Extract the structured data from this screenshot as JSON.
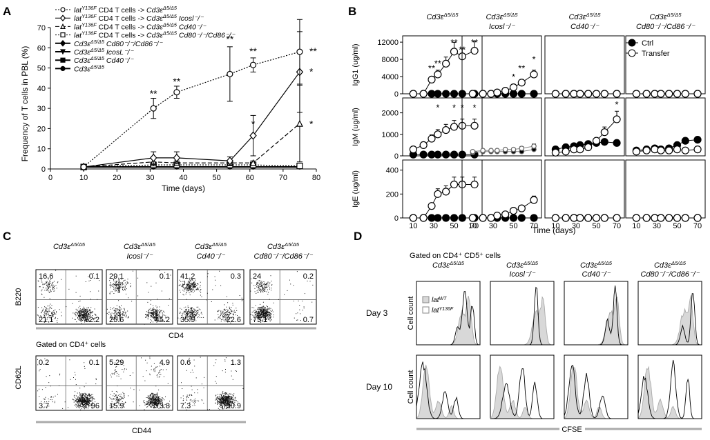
{
  "panels": {
    "a": "A",
    "b": "B",
    "c": "C",
    "d": "D"
  },
  "panelA": {
    "ylabel": "Frequency of T cells in PBL (%)",
    "xlabel": "Time (days)",
    "xticks": [
      "0",
      "10",
      "20",
      "30",
      "40",
      "50",
      "60",
      "70",
      "80"
    ],
    "yticks": [
      "0",
      "10",
      "20",
      "30",
      "40",
      "50",
      "60",
      "70"
    ],
    "legend": [
      {
        "pre": "lat",
        "sup": "Y136F",
        "mid": " CD4 T cells -> ",
        "main": "Cd3ε",
        "sup2": "Δ5/Δ5",
        "post": "",
        "marker": "circle-open",
        "dash": "2,2"
      },
      {
        "pre": "lat",
        "sup": "Y136F",
        "mid": " CD4 T cells -> ",
        "main": "Cd3ε",
        "sup2": "Δ5/Δ5",
        "post": " Icosl⁻/⁻",
        "marker": "diamond-open",
        "dash": ""
      },
      {
        "pre": "lat",
        "sup": "Y136F",
        "mid": " CD4 T cells -> ",
        "main": "Cd3ε",
        "sup2": "Δ5/Δ5",
        "post": " Cd40⁻/⁻",
        "marker": "triangle-open",
        "dash": "6,3"
      },
      {
        "pre": "lat",
        "sup": "Y136F",
        "mid": " CD4 T cells -> ",
        "main": "Cd3ε",
        "sup2": "Δ5/Δ5",
        "post": " Cd80⁻/⁻/Cd86⁻/⁻",
        "marker": "square-open",
        "dash": "2,2"
      },
      {
        "pre": "",
        "sup": "",
        "mid": "",
        "main": "Cd3ε",
        "sup2": "Δ5/Δ5",
        "post": " Cd80⁻/⁻/Cd86⁻/⁻",
        "marker": "diamond",
        "dash": ""
      },
      {
        "pre": "",
        "sup": "",
        "mid": "",
        "main": "Cd3ε",
        "sup2": "Δ5/Δ5",
        "post": " IcosL⁻/⁻",
        "marker": "triangle-down",
        "dash": ""
      },
      {
        "pre": "",
        "sup": "",
        "mid": "",
        "main": "Cd3ε",
        "sup2": "Δ5/Δ5",
        "post": " Cd40⁻/⁻",
        "marker": "square",
        "dash": ""
      },
      {
        "pre": "",
        "sup": "",
        "mid": "",
        "main": "Cd3ε",
        "sup2": "Δ5/Δ5",
        "post": "",
        "marker": "circle",
        "dash": ""
      }
    ],
    "stars": [
      {
        "x": 31,
        "y": 37,
        "t": "**"
      },
      {
        "x": 38,
        "y": 43,
        "t": "**"
      },
      {
        "x": 54,
        "y": 64,
        "t": "**"
      },
      {
        "x": 61,
        "y": 58,
        "t": "**"
      },
      {
        "x": 75,
        "y": 58,
        "t": "**"
      },
      {
        "x": 61,
        "y": 22,
        "t": "*"
      },
      {
        "x": 75,
        "y": 48,
        "t": "*"
      },
      {
        "x": 75,
        "y": 22,
        "t": "*"
      }
    ]
  },
  "panelB": {
    "titles": [
      "Cd3ε",
      "Cd3ε",
      "Cd3ε",
      "Cd3ε"
    ],
    "titleSup": "Δ5/Δ5",
    "titleLine2": [
      "",
      "Icosl⁻/⁻",
      "Cd40⁻/⁻",
      "Cd80⁻/⁻/Cd86⁻/⁻"
    ],
    "rowLabels": [
      "IgG1 (ug/ml)",
      "IgM (ug/ml)",
      "IgE (ug/ml)"
    ],
    "ytickLabels": [
      [
        "0",
        "4000",
        "8000",
        "12000"
      ],
      [
        "0",
        "1000",
        "2000"
      ],
      [
        "0",
        "200",
        "400"
      ]
    ],
    "xtickLabels": [
      "10",
      "30",
      "50",
      "70"
    ],
    "xlabel": "Time (days)",
    "legendCtrl": "Ctrl",
    "legendTransfer": "Transfer",
    "stars": [
      {
        "p": 0,
        "r": 0,
        "x": 28,
        "t": "**",
        "v": 5200
      },
      {
        "p": 0,
        "r": 0,
        "x": 34,
        "t": "**",
        "v": 6300
      },
      {
        "p": 0,
        "r": 0,
        "x": 50,
        "t": "**",
        "v": 11200
      },
      {
        "p": 0,
        "r": 0,
        "x": 58,
        "t": "**",
        "v": 9500
      },
      {
        "p": 0,
        "r": 0,
        "x": 70,
        "t": "**",
        "v": 11200
      },
      {
        "p": 0,
        "r": 1,
        "x": 34,
        "t": "*",
        "v": 2100
      },
      {
        "p": 0,
        "r": 1,
        "x": 50,
        "t": "*",
        "v": 2100
      },
      {
        "p": 0,
        "r": 1,
        "x": 58,
        "t": "*",
        "v": 2100
      },
      {
        "p": 0,
        "r": 1,
        "x": 70,
        "t": "*",
        "v": 2100
      },
      {
        "p": 1,
        "r": 0,
        "x": 50,
        "t": "*",
        "v": 3200
      },
      {
        "p": 1,
        "r": 0,
        "x": 58,
        "t": "**",
        "v": 5200
      },
      {
        "p": 1,
        "r": 0,
        "x": 70,
        "t": "*",
        "v": 7300
      },
      {
        "p": 2,
        "r": 1,
        "x": 70,
        "t": "*",
        "v": 2250
      }
    ]
  },
  "panelC": {
    "topTitles": [
      [
        "Cd3ε",
        "Δ5/Δ5",
        ""
      ],
      [
        "Cd3ε",
        "Δ5/Δ5",
        "Icosl⁻/⁻"
      ],
      [
        "Cd3ε",
        "Δ5/Δ5",
        "Cd40⁻/⁻"
      ],
      [
        "Cd3ε",
        "Δ5/Δ5",
        "Cd80⁻/⁻/Cd86⁻/⁻"
      ]
    ],
    "topQuads": [
      [
        "16.6",
        "0.1",
        "21.1",
        "62.2"
      ],
      [
        "29.1",
        "0.1",
        "25.6",
        "45.2"
      ],
      [
        "41.2",
        "0.3",
        "35.9",
        "22.6"
      ],
      [
        "24",
        "0.2",
        "75.1",
        "0.7"
      ]
    ],
    "topY": "B220",
    "topX": "CD4",
    "gatedLabel": "Gated on CD4⁺ cells",
    "botQuads": [
      [
        "0.2",
        "0.1",
        "3.7",
        "96"
      ],
      [
        "5.29",
        "4.9",
        "15.9",
        "73.8"
      ],
      [
        "0.6",
        "1.3",
        "7.3",
        "90.9"
      ]
    ],
    "botY": "CD62L",
    "botX": "CD44"
  },
  "panelD": {
    "gatedLabel": "Gated on CD4⁺ CD5⁺ cells",
    "titles": [
      [
        "Cd3ε",
        "Δ5/Δ5",
        ""
      ],
      [
        "Cd3ε",
        "Δ5/Δ5",
        "Icosl⁻/⁻"
      ],
      [
        "Cd3ε",
        "Δ5/Δ5",
        "Cd40⁻/⁻"
      ],
      [
        "Cd3ε",
        "Δ5/Δ5",
        "Cd80⁻/⁻/Cd86⁻/⁻"
      ]
    ],
    "rows": [
      "Day 3",
      "Day 10"
    ],
    "yLabel": "Cell count",
    "xLabel": "CFSE",
    "legend": [
      {
        "main": "lat",
        "sup": "WT",
        "fill": "#d8d8d8"
      },
      {
        "main": "lat",
        "sup": "Y136F",
        "fill": "#ffffff"
      }
    ]
  },
  "chart_data": [
    {
      "type": "line",
      "title": "Frequency of T cells in PBL",
      "xlabel": "Time (days)",
      "ylabel": "Frequency of T cells in PBL (%)",
      "xlim": [
        0,
        80
      ],
      "ylim": [
        0,
        70
      ],
      "series": [
        {
          "name": "latY136F CD4 T cells -> Cd3ε Δ5/Δ5",
          "x": [
            10,
            31,
            38,
            54,
            61,
            75
          ],
          "values": [
            1,
            30,
            38,
            47,
            51.5,
            58
          ],
          "err": [
            0,
            5,
            3,
            13.5,
            3.5,
            16
          ]
        },
        {
          "name": "latY136F CD4 T cells -> Cd3ε Δ5/Δ5 Icosl-/-",
          "x": [
            10,
            31,
            38,
            54,
            61,
            75
          ],
          "values": [
            1,
            5.5,
            5.5,
            4,
            16.5,
            48
          ],
          "err": [
            0,
            3,
            3,
            2,
            10,
            20
          ]
        },
        {
          "name": "latY136F CD4 T cells -> Cd3ε Δ5/Δ5 Cd40-/-",
          "x": [
            10,
            31,
            38,
            54,
            61,
            75
          ],
          "values": [
            1,
            3.5,
            3,
            3,
            3,
            22.5
          ],
          "err": [
            0,
            2,
            1,
            1,
            1,
            19
          ]
        },
        {
          "name": "latY136F CD4 T cells -> Cd3ε Δ5/Δ5 Cd80-/-/Cd86-/-",
          "x": [
            10,
            31,
            38,
            54,
            61,
            75
          ],
          "values": [
            1,
            2,
            2,
            2,
            2,
            1.5
          ],
          "err": [
            0,
            0,
            0,
            0,
            0,
            0
          ]
        },
        {
          "name": "Cd3ε Δ5/Δ5 (all controls)",
          "x": [
            10,
            31,
            38,
            54,
            61,
            75
          ],
          "values": [
            1,
            1,
            1,
            1,
            1,
            1
          ]
        }
      ]
    },
    {
      "type": "line",
      "title": "IgG1 (ug/ml)",
      "xlabel": "Time (days)",
      "ylim": [
        0,
        12000
      ],
      "x": [
        10,
        20,
        28,
        34,
        42,
        50,
        58,
        70
      ],
      "series": [
        {
          "name": "Cd3εΔ5/Δ5 Ctrl",
          "values": [
            0,
            0,
            0,
            0,
            0,
            0,
            0,
            0
          ]
        },
        {
          "name": "Cd3εΔ5/Δ5 Transfer",
          "values": [
            0,
            0,
            3300,
            4500,
            7000,
            9800,
            8700,
            10000
          ]
        },
        {
          "name": "Icosl-/- Ctrl",
          "values": [
            0,
            0,
            0,
            0,
            0,
            0,
            0,
            0
          ]
        },
        {
          "name": "Icosl-/- Transfer",
          "values": [
            0,
            0,
            0,
            300,
            700,
            1500,
            2600,
            4500
          ]
        },
        {
          "name": "Cd40-/- Ctrl",
          "values": [
            0,
            0,
            0,
            0,
            0,
            0,
            0,
            0
          ]
        },
        {
          "name": "Cd40-/- Transfer",
          "values": [
            0,
            0,
            0,
            0,
            0,
            0,
            0,
            0
          ]
        },
        {
          "name": "Cd80-/-/Cd86-/- Ctrl",
          "values": [
            0,
            0,
            0,
            0,
            0,
            0,
            0,
            0
          ]
        },
        {
          "name": "Cd80-/-/Cd86-/- Transfer",
          "values": [
            0,
            0,
            0,
            0,
            0,
            0,
            0,
            0
          ]
        }
      ]
    },
    {
      "type": "line",
      "title": "IgM (ug/ml)",
      "xlabel": "Time (days)",
      "ylim": [
        0,
        2500
      ],
      "x": [
        10,
        20,
        28,
        34,
        42,
        50,
        58,
        70
      ],
      "series": [
        {
          "name": "Cd3εΔ5/Δ5 Ctrl",
          "values": [
            60,
            60,
            60,
            60,
            60,
            60,
            60,
            60
          ]
        },
        {
          "name": "Cd3εΔ5/Δ5 Transfer",
          "values": [
            300,
            500,
            800,
            1000,
            1200,
            1350,
            1400,
            1400
          ]
        },
        {
          "name": "Icosl-/- Ctrl",
          "values": [
            150,
            200,
            200,
            200,
            200,
            200,
            200,
            300
          ]
        },
        {
          "name": "Icosl-/- Transfer",
          "values": [
            200,
            250,
            250,
            250,
            300,
            300,
            350,
            450
          ]
        },
        {
          "name": "Cd40-/- Ctrl",
          "values": [
            300,
            400,
            450,
            500,
            550,
            600,
            650,
            600
          ]
        },
        {
          "name": "Cd40-/- Transfer",
          "values": [
            150,
            200,
            300,
            300,
            400,
            700,
            1100,
            1700
          ]
        },
        {
          "name": "Cd80-/-/Cd86-/- Ctrl",
          "values": [
            250,
            300,
            350,
            300,
            350,
            500,
            700,
            750
          ]
        },
        {
          "name": "Cd80-/-/Cd86-/- Transfer",
          "values": [
            200,
            250,
            300,
            250,
            250,
            300,
            250,
            300
          ]
        }
      ]
    },
    {
      "type": "line",
      "title": "IgE (ug/ml)",
      "xlabel": "Time (days)",
      "ylim": [
        0,
        450
      ],
      "x": [
        10,
        20,
        28,
        34,
        42,
        50,
        58,
        70
      ],
      "series": [
        {
          "name": "Cd3εΔ5/Δ5 Ctrl",
          "values": [
            0,
            0,
            0,
            0,
            0,
            0,
            0,
            0
          ]
        },
        {
          "name": "Cd3εΔ5/Δ5 Transfer",
          "values": [
            0,
            0,
            100,
            200,
            220,
            280,
            280,
            280
          ]
        },
        {
          "name": "Icosl-/- Ctrl",
          "values": [
            0,
            0,
            0,
            0,
            0,
            0,
            0,
            0
          ]
        },
        {
          "name": "Icosl-/- Transfer",
          "values": [
            0,
            0,
            0,
            20,
            30,
            60,
            80,
            150
          ]
        },
        {
          "name": "Cd40-/- Ctrl",
          "values": [
            0,
            0,
            0,
            0,
            0,
            0,
            0,
            0
          ]
        },
        {
          "name": "Cd40-/- Transfer",
          "values": [
            0,
            0,
            0,
            0,
            0,
            0,
            0,
            0
          ]
        },
        {
          "name": "Cd80-/-/Cd86-/- Ctrl",
          "values": [
            0,
            0,
            0,
            0,
            0,
            0,
            0,
            0
          ]
        },
        {
          "name": "Cd80-/-/Cd86-/- Transfer",
          "values": [
            0,
            0,
            0,
            0,
            0,
            0,
            0,
            0
          ]
        }
      ]
    }
  ],
  "dotplot_data": [
    {
      "w": [
        0.17,
        0.0,
        0.2,
        0.63
      ]
    },
    {
      "w": [
        0.29,
        0.0,
        0.26,
        0.45
      ]
    },
    {
      "w": [
        0.41,
        0.0,
        0.36,
        0.23
      ]
    },
    {
      "w": [
        0.24,
        0.0,
        0.75,
        0.01
      ]
    }
  ],
  "dotplot_bottom": [
    {
      "w": [
        0,
        0,
        0.04,
        0.96
      ]
    },
    {
      "w": [
        0.05,
        0.05,
        0.16,
        0.74
      ]
    },
    {
      "w": [
        0.01,
        0.01,
        0.07,
        0.91
      ]
    }
  ]
}
